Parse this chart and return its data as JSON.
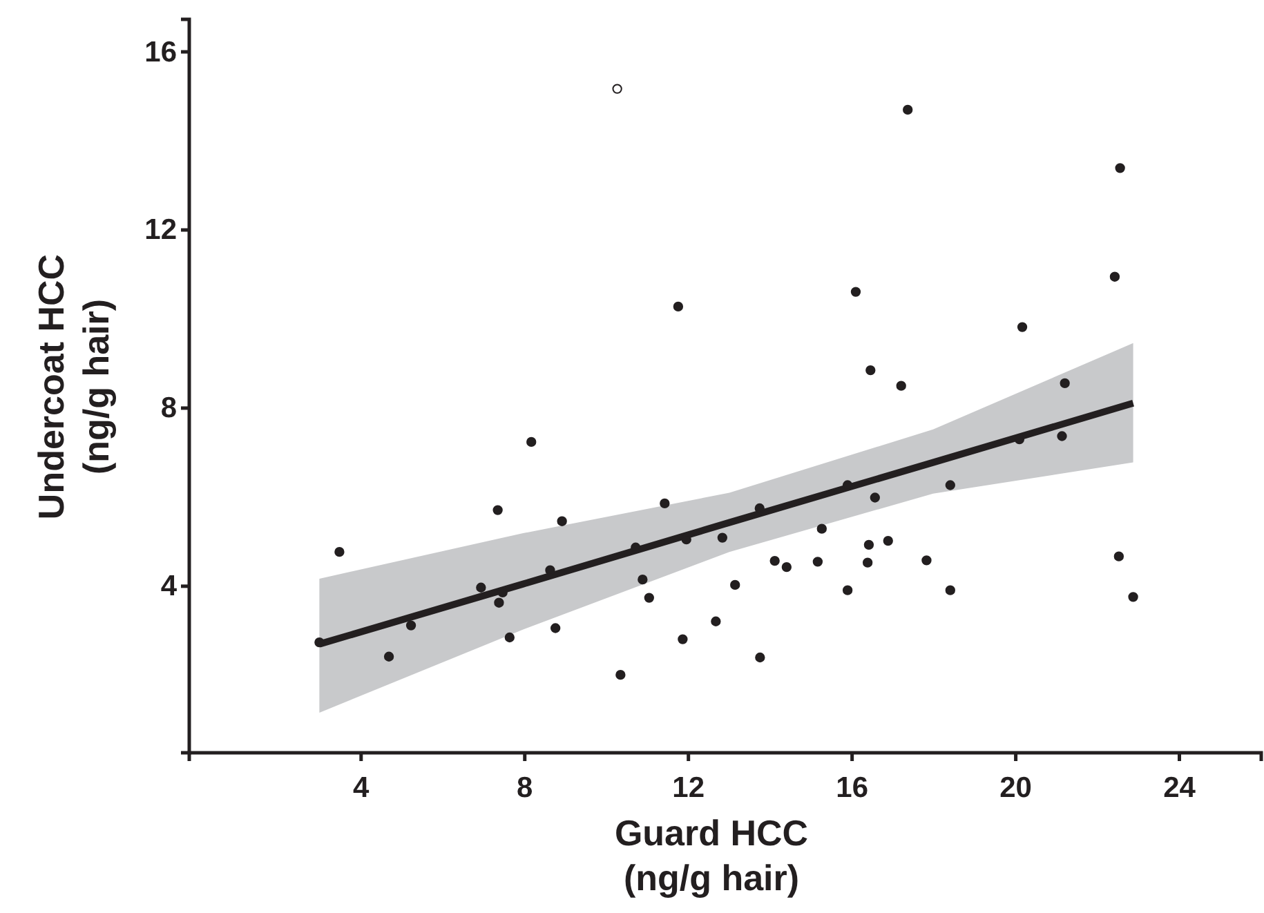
{
  "chart_data": {
    "type": "scatter",
    "xlabel": "Guard HCC\n(ng/g hair)",
    "ylabel": "Undercoat HCC\n(ng/g hair)",
    "xlim": [
      -0.2,
      26
    ],
    "xticks": [
      4,
      8,
      12,
      16,
      20,
      24
    ],
    "ylim": [
      0.26,
      16.73
    ],
    "yticks": [
      4,
      8,
      12,
      16
    ],
    "grid": false,
    "marker": "circle",
    "series": [
      {
        "type": "line",
        "color": "#231f20",
        "line_style": "solid",
        "marker": "none",
        "x": [
          2.98,
          7.96,
          13.0,
          17.98,
          22.87
        ],
        "values": [
          2.7,
          4.05,
          5.43,
          6.78,
          8.11
        ],
        "lower": [
          1.16,
          3.03,
          4.77,
          6.08,
          6.78
        ],
        "upper": [
          4.17,
          5.19,
          6.1,
          7.52,
          9.46
        ]
      },
      {
        "color": "#231f20",
        "x": [
          2.98,
          3.47,
          4.68,
          5.22,
          6.93,
          7.34,
          7.37,
          7.46,
          7.63,
          8.16,
          8.62,
          8.75,
          8.91,
          10.34,
          10.71,
          10.88,
          11.04,
          11.42,
          11.75,
          11.86,
          11.95,
          12.67,
          12.83,
          13.14,
          13.74,
          13.75,
          14.11,
          14.4,
          15.16,
          15.26,
          15.89,
          15.89,
          16.09,
          16.38,
          16.41,
          16.45,
          16.56,
          16.88,
          17.2,
          17.36,
          17.82,
          18.4,
          18.4,
          20.09,
          20.16,
          21.13,
          21.2,
          22.42,
          22.52,
          22.55,
          22.87
        ],
        "values": [
          2.74,
          4.77,
          2.42,
          3.12,
          3.97,
          5.71,
          3.63,
          3.86,
          2.85,
          7.24,
          4.36,
          3.06,
          5.46,
          2.01,
          4.87,
          4.15,
          3.74,
          5.86,
          10.28,
          2.81,
          5.05,
          3.21,
          5.09,
          4.03,
          5.75,
          2.4,
          4.57,
          4.43,
          4.55,
          5.29,
          6.27,
          3.91,
          10.61,
          4.53,
          4.93,
          8.85,
          5.99,
          5.02,
          8.5,
          14.7,
          4.58,
          6.27,
          3.91,
          7.3,
          9.82,
          7.37,
          8.56,
          10.95,
          4.67,
          13.39,
          3.76
        ]
      },
      {
        "color": "#ffffff",
        "x": [
          10.26
        ],
        "values": [
          15.17
        ]
      }
    ]
  }
}
